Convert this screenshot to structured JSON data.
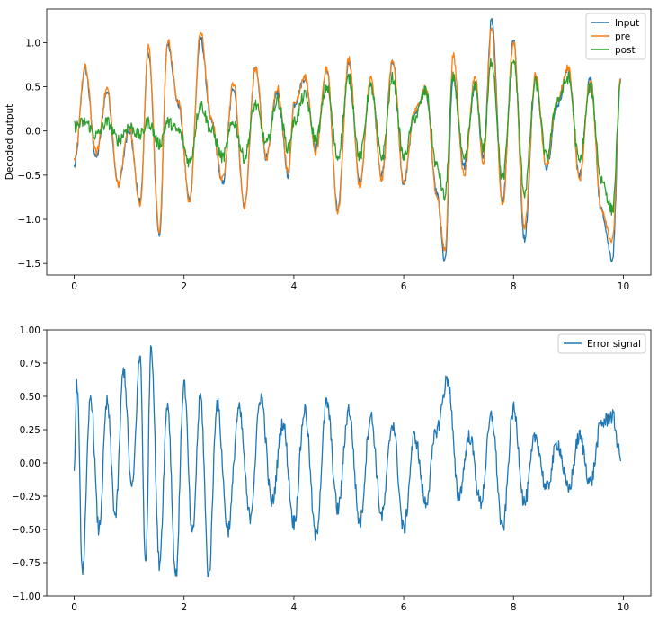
{
  "chart_data": [
    {
      "type": "line",
      "title": "",
      "xlabel": "",
      "ylabel": "Decoded output",
      "xlim": [
        -0.5,
        10.5
      ],
      "ylim": [
        -1.63,
        1.38
      ],
      "x_ticks": [
        0,
        2,
        4,
        6,
        8,
        10
      ],
      "y_ticks": [
        -1.5,
        -1.0,
        -0.5,
        0.0,
        0.5,
        1.0
      ],
      "x_tick_labels": [
        "0",
        "2",
        "4",
        "6",
        "8",
        "10"
      ],
      "y_tick_labels": [
        "−1.5",
        "−1.0",
        "−0.5",
        "0.0",
        "0.5",
        "1.0"
      ],
      "grid": false,
      "legend": "top-right",
      "x": [
        0.0,
        0.2,
        0.4,
        0.6,
        0.8,
        1.0,
        1.2,
        1.35,
        1.55,
        1.7,
        1.9,
        2.1,
        2.3,
        2.5,
        2.7,
        2.9,
        3.1,
        3.3,
        3.5,
        3.7,
        3.9,
        4.0,
        4.2,
        4.4,
        4.6,
        4.8,
        5.0,
        5.2,
        5.4,
        5.6,
        5.8,
        6.0,
        6.2,
        6.4,
        6.6,
        6.75,
        6.9,
        7.1,
        7.3,
        7.45,
        7.6,
        7.8,
        8.0,
        8.2,
        8.4,
        8.6,
        8.8,
        9.0,
        9.2,
        9.4,
        9.6,
        9.8,
        9.95
      ],
      "series": [
        {
          "name": "Input",
          "color": "#1f77b4",
          "values": [
            -0.4,
            0.7,
            -0.3,
            0.45,
            -0.6,
            0.0,
            -0.8,
            0.9,
            -1.18,
            1.0,
            0.3,
            -0.78,
            1.05,
            0.1,
            -0.6,
            0.5,
            -0.85,
            0.7,
            -0.3,
            0.45,
            -0.5,
            0.3,
            0.6,
            -0.2,
            0.7,
            -0.9,
            0.8,
            -0.6,
            0.55,
            -0.5,
            0.8,
            -0.6,
            0.2,
            0.45,
            -0.7,
            -1.48,
            0.6,
            -0.4,
            0.5,
            -0.3,
            1.25,
            -0.8,
            1.05,
            -1.22,
            0.6,
            -0.4,
            0.3,
            0.7,
            -0.5,
            0.6,
            -0.9,
            -1.45,
            0.55
          ]
        },
        {
          "name": "pre",
          "color": "#ff7f0e",
          "values": [
            -0.35,
            0.72,
            -0.25,
            0.48,
            -0.6,
            0.05,
            -0.85,
            0.95,
            -1.12,
            1.02,
            0.32,
            -0.8,
            1.12,
            0.12,
            -0.55,
            0.55,
            -0.85,
            0.72,
            -0.3,
            0.5,
            -0.45,
            0.3,
            0.62,
            -0.25,
            0.72,
            -0.92,
            0.82,
            -0.62,
            0.6,
            -0.55,
            0.82,
            -0.6,
            0.22,
            0.5,
            -0.72,
            -1.35,
            0.85,
            -0.5,
            0.62,
            -0.35,
            1.15,
            -0.85,
            1.0,
            -1.1,
            0.65,
            -0.4,
            0.35,
            0.72,
            -0.55,
            0.58,
            -0.88,
            -1.25,
            0.6
          ]
        },
        {
          "name": "post",
          "color": "#2ca02c",
          "values": [
            0.05,
            0.1,
            -0.05,
            0.1,
            -0.1,
            0.05,
            -0.05,
            0.1,
            -0.15,
            0.1,
            0.0,
            -0.35,
            0.3,
            0.0,
            -0.3,
            0.1,
            -0.3,
            0.3,
            -0.15,
            0.35,
            -0.2,
            0.1,
            0.4,
            -0.1,
            0.5,
            -0.3,
            0.6,
            -0.3,
            0.5,
            -0.3,
            0.6,
            -0.3,
            0.15,
            0.45,
            -0.4,
            -0.75,
            0.6,
            -0.35,
            0.5,
            -0.2,
            0.8,
            -0.55,
            0.8,
            -0.7,
            0.55,
            -0.3,
            0.35,
            0.6,
            -0.35,
            0.5,
            -0.55,
            -0.9,
            0.5
          ]
        }
      ]
    },
    {
      "type": "line",
      "title": "",
      "xlabel": "",
      "ylabel": "",
      "xlim": [
        -0.5,
        10.5
      ],
      "ylim": [
        -1.0,
        1.0
      ],
      "x_ticks": [
        0,
        2,
        4,
        6,
        8,
        10
      ],
      "y_ticks": [
        -1.0,
        -0.75,
        -0.5,
        -0.25,
        0.0,
        0.25,
        0.5,
        0.75,
        1.0
      ],
      "x_tick_labels": [
        "0",
        "2",
        "4",
        "6",
        "8",
        "10"
      ],
      "y_tick_labels": [
        "−1.00",
        "−0.75",
        "−0.50",
        "−0.25",
        "0.00",
        "0.25",
        "0.50",
        "0.75",
        "1.00"
      ],
      "grid": false,
      "legend": "top-right",
      "x": [
        0.0,
        0.05,
        0.15,
        0.3,
        0.45,
        0.6,
        0.75,
        0.9,
        1.05,
        1.2,
        1.3,
        1.4,
        1.55,
        1.7,
        1.85,
        2.0,
        2.15,
        2.3,
        2.45,
        2.6,
        2.8,
        3.0,
        3.2,
        3.4,
        3.6,
        3.8,
        4.0,
        4.2,
        4.4,
        4.6,
        4.8,
        5.0,
        5.2,
        5.4,
        5.6,
        5.8,
        6.0,
        6.2,
        6.4,
        6.6,
        6.8,
        7.0,
        7.2,
        7.4,
        7.6,
        7.8,
        8.0,
        8.2,
        8.4,
        8.6,
        8.8,
        9.0,
        9.2,
        9.4,
        9.6,
        9.8,
        9.95
      ],
      "series": [
        {
          "name": "Error signal",
          "color": "#1f77b4",
          "values": [
            0.0,
            0.6,
            -0.8,
            0.5,
            -0.5,
            0.45,
            -0.4,
            0.7,
            -0.2,
            0.8,
            -0.78,
            0.9,
            -0.75,
            0.45,
            -0.85,
            0.6,
            -0.55,
            0.5,
            -0.85,
            0.45,
            -0.5,
            0.4,
            -0.4,
            0.5,
            -0.3,
            0.3,
            -0.45,
            0.4,
            -0.55,
            0.45,
            -0.35,
            0.4,
            -0.45,
            0.35,
            -0.4,
            0.3,
            -0.5,
            0.2,
            -0.3,
            0.25,
            0.63,
            -0.25,
            0.2,
            -0.3,
            0.35,
            -0.5,
            0.4,
            -0.3,
            0.2,
            -0.2,
            0.15,
            -0.2,
            0.2,
            -0.15,
            0.3,
            0.35,
            0.05
          ]
        }
      ]
    }
  ]
}
